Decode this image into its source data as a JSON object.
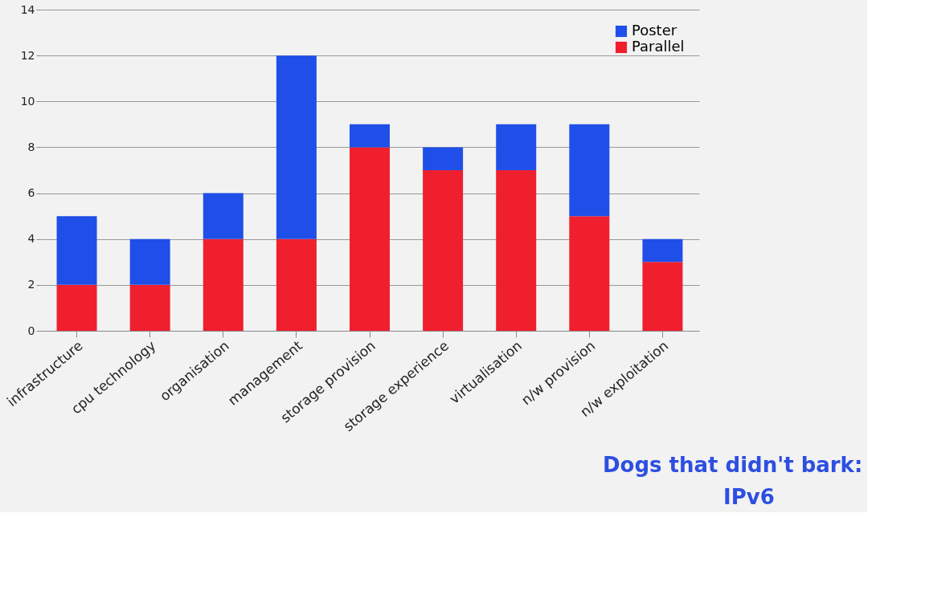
{
  "chart_data": {
    "type": "bar",
    "stacked": true,
    "categories": [
      "infrastructure",
      "cpu technology",
      "organisation",
      "management",
      "storage provision",
      "storage experience",
      "virtualisation",
      "n/w provision",
      "n/w exploitation"
    ],
    "series": [
      {
        "name": "Parallel",
        "color": "#f01f2e",
        "values": [
          2,
          2,
          4,
          4,
          8,
          7,
          7,
          5,
          3
        ]
      },
      {
        "name": "Poster",
        "color": "#1f4fe8",
        "values": [
          3,
          2,
          2,
          8,
          1,
          1,
          2,
          4,
          1
        ]
      }
    ],
    "ylim": [
      0,
      14
    ],
    "yticks": [
      0,
      2,
      4,
      6,
      8,
      10,
      12,
      14
    ],
    "grid": "y",
    "legend": "top right",
    "annotations": [
      "Dogs that didn't bark:",
      "IPv6"
    ]
  }
}
